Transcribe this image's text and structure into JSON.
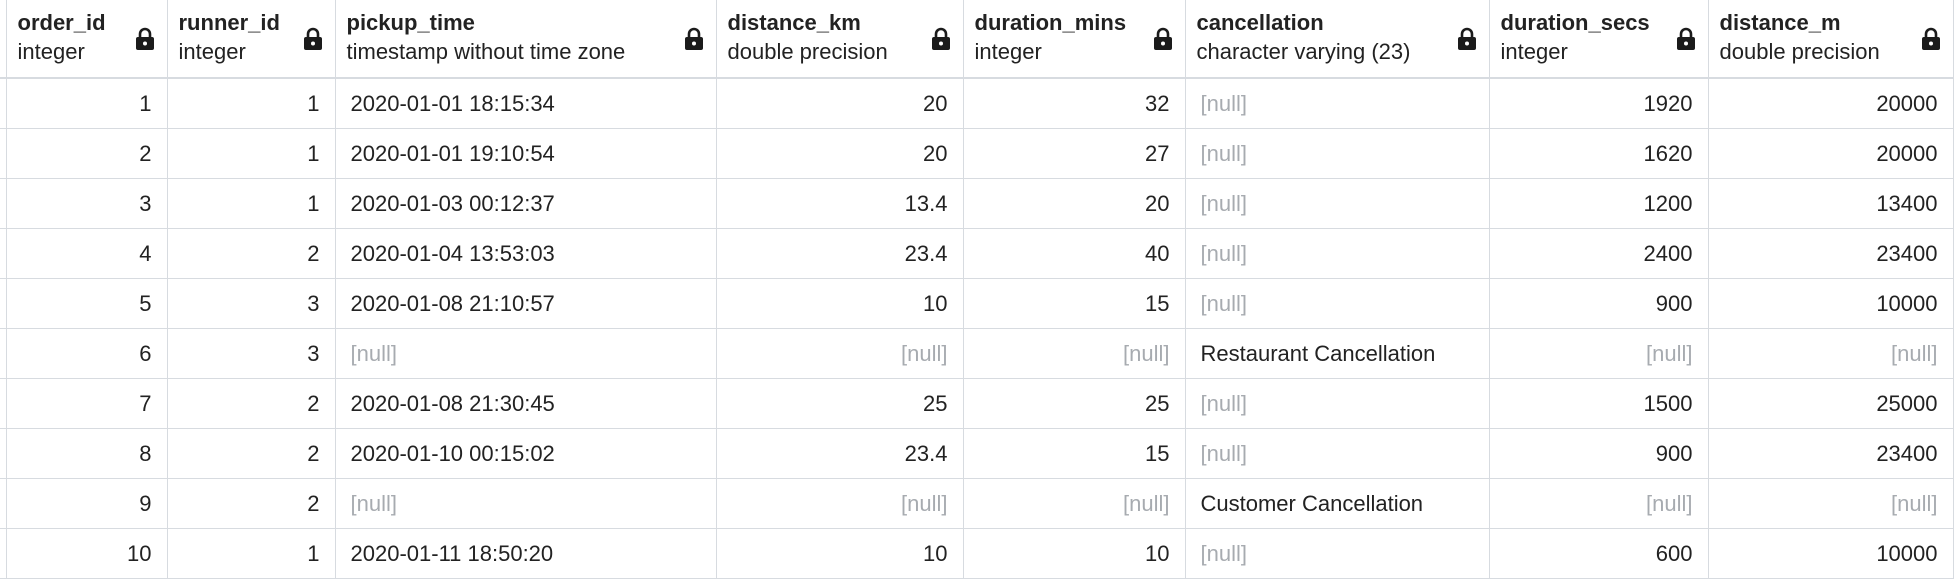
{
  "columns": [
    {
      "name": "order_id",
      "type": "integer",
      "align": "right"
    },
    {
      "name": "runner_id",
      "type": "integer",
      "align": "right"
    },
    {
      "name": "pickup_time",
      "type": "timestamp without time zone",
      "align": "left"
    },
    {
      "name": "distance_km",
      "type": "double precision",
      "align": "right"
    },
    {
      "name": "duration_mins",
      "type": "integer",
      "align": "right"
    },
    {
      "name": "cancellation",
      "type": "character varying (23)",
      "align": "left"
    },
    {
      "name": "duration_secs",
      "type": "integer",
      "align": "right"
    },
    {
      "name": "distance_m",
      "type": "double precision",
      "align": "right"
    }
  ],
  "null_text": "[null]",
  "lock_icon": "lock-icon",
  "colors": {
    "grid_line": "#d7dbe0",
    "null_text": "#a7abb0",
    "text": "#222222"
  },
  "rows": [
    [
      "1",
      "1",
      "2020-01-01 18:15:34",
      "20",
      "32",
      "[null]",
      "1920",
      "20000"
    ],
    [
      "2",
      "1",
      "2020-01-01 19:10:54",
      "20",
      "27",
      "[null]",
      "1620",
      "20000"
    ],
    [
      "3",
      "1",
      "2020-01-03 00:12:37",
      "13.4",
      "20",
      "[null]",
      "1200",
      "13400"
    ],
    [
      "4",
      "2",
      "2020-01-04 13:53:03",
      "23.4",
      "40",
      "[null]",
      "2400",
      "23400"
    ],
    [
      "5",
      "3",
      "2020-01-08 21:10:57",
      "10",
      "15",
      "[null]",
      "900",
      "10000"
    ],
    [
      "6",
      "3",
      "[null]",
      "[null]",
      "[null]",
      "Restaurant Cancellation",
      "[null]",
      "[null]"
    ],
    [
      "7",
      "2",
      "2020-01-08 21:30:45",
      "25",
      "25",
      "[null]",
      "1500",
      "25000"
    ],
    [
      "8",
      "2",
      "2020-01-10 00:15:02",
      "23.4",
      "15",
      "[null]",
      "900",
      "23400"
    ],
    [
      "9",
      "2",
      "[null]",
      "[null]",
      "[null]",
      "Customer Cancellation",
      "[null]",
      "[null]"
    ],
    [
      "10",
      "1",
      "2020-01-11 18:50:20",
      "10",
      "10",
      "[null]",
      "600",
      "10000"
    ]
  ]
}
